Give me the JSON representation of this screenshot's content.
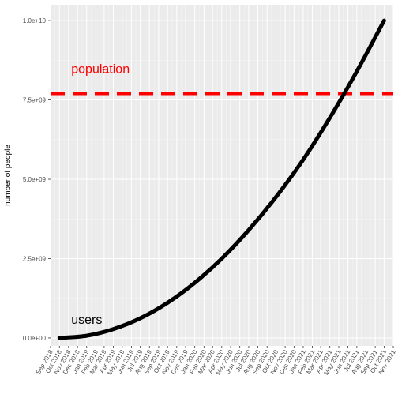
{
  "chart_data": {
    "type": "line",
    "title": "",
    "xlabel": "",
    "ylabel": "number of people",
    "x_start": "2018-10-01",
    "x_end": "2021-10-01",
    "xlim": [
      "2018-09-01",
      "2021-11-01"
    ],
    "ylim": [
      -250000000,
      10500000000
    ],
    "yticks": [
      {
        "value": 0,
        "label": "0.0e+00"
      },
      {
        "value": 2500000000,
        "label": "2.5e+09"
      },
      {
        "value": 5000000000,
        "label": "5.0e+09"
      },
      {
        "value": 7500000000,
        "label": "7.5e+09"
      },
      {
        "value": 10000000000,
        "label": "1.0e+10"
      }
    ],
    "xtick_labels": [
      "Sep 2018",
      "Oct 2018",
      "Nov 2018",
      "Dec 2018",
      "Jan 2019",
      "Feb 2019",
      "Mar 2019",
      "Apr 2019",
      "May 2019",
      "Jun 2019",
      "Jul 2019",
      "Aug 2019",
      "Sep 2019",
      "Oct 2019",
      "Nov 2019",
      "Dec 2019",
      "Jan 2020",
      "Feb 2020",
      "Mar 2020",
      "Apr 2020",
      "May 2020",
      "Jun 2020",
      "Jul 2020",
      "Aug 2020",
      "Sep 2020",
      "Oct 2020",
      "Nov 2020",
      "Dec 2020",
      "Jan 2021",
      "Feb 2021",
      "Mar 2021",
      "Apr 2021",
      "May 2021",
      "Jun 2021",
      "Jul 2021",
      "Aug 2021",
      "Sep 2021",
      "Oct 2021",
      "Nov 2021"
    ],
    "series": [
      {
        "name": "users",
        "color": "#000000",
        "x": [
          "2018-10-01",
          "2019-01-01",
          "2019-04-01",
          "2019-07-01",
          "2019-10-01",
          "2020-01-01",
          "2020-04-01",
          "2020-07-01",
          "2020-10-01",
          "2021-01-01",
          "2021-04-01",
          "2021-07-01",
          "2021-10-01"
        ],
        "y": [
          0,
          70000000,
          280000000,
          620000000,
          1110000000,
          1740000000,
          2500000000,
          3400000000,
          4440000000,
          5620000000,
          6940000000,
          8400000000,
          10000000000
        ]
      }
    ],
    "hlines": [
      {
        "name": "population",
        "value": 7700000000,
        "color": "#ff0000",
        "style": "dashed"
      }
    ],
    "annotations": [
      {
        "text": "population",
        "x": "2018-11-10",
        "y": 8350000000,
        "color": "#ff0000"
      },
      {
        "text": "users",
        "x": "2018-11-10",
        "y": 450000000,
        "color": "#000000"
      }
    ],
    "background": "#ebebeb",
    "grid": true,
    "legend": "none"
  }
}
